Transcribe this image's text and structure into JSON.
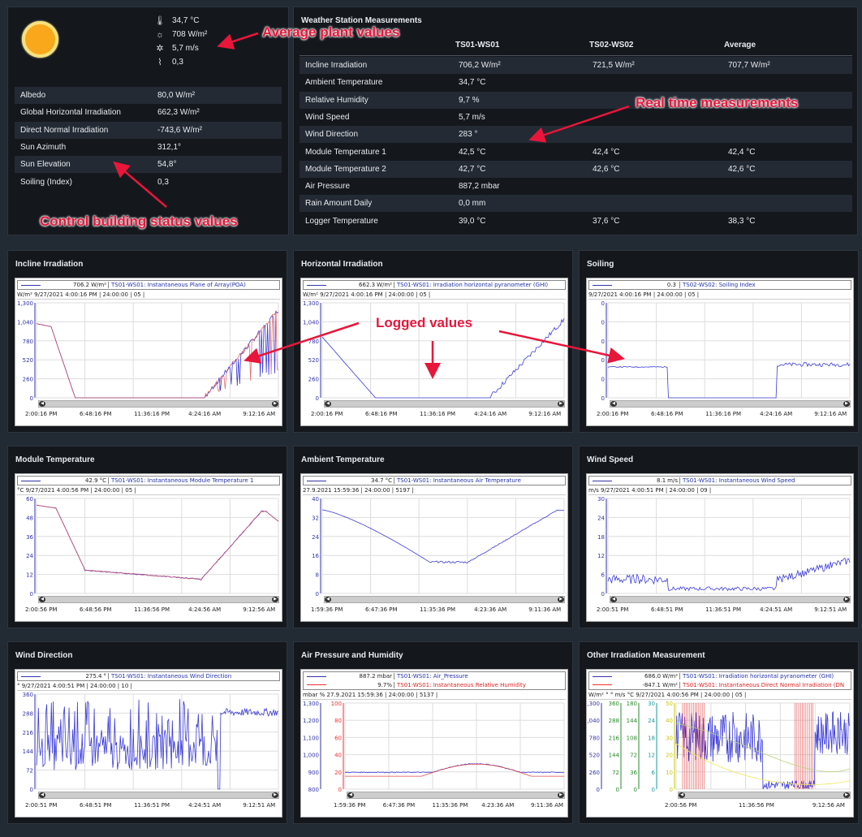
{
  "plant": {
    "avg": [
      {
        "icon": "thermometer-icon",
        "glyph": "🌡",
        "value": "34,7 °C"
      },
      {
        "icon": "sun-outline-icon",
        "glyph": "☼",
        "value": "708 W/m²"
      },
      {
        "icon": "wind-icon",
        "glyph": "✲",
        "value": "5,7 m/s"
      },
      {
        "icon": "soiling-icon",
        "glyph": "⌇",
        "value": "0,3"
      }
    ],
    "status": [
      {
        "label": "Albedo",
        "value": "80,0 W/m²"
      },
      {
        "label": "Global Horizontal Irradiation",
        "value": "662,3 W/m²"
      },
      {
        "label": "Direct Normal Irradiation",
        "value": "-743,6 W/m²"
      },
      {
        "label": "Sun Azimuth",
        "value": "312,1°"
      },
      {
        "label": "Sun Elevation",
        "value": "54,8°"
      },
      {
        "label": "Soiling (Index)",
        "value": "0,3"
      }
    ]
  },
  "weather": {
    "title": "Weather Station Measurements",
    "cols": [
      "TS01-WS01",
      "TS02-WS02",
      "Average"
    ],
    "rows": [
      {
        "label": "Incline Irradiation",
        "v1": "706,2 W/m²",
        "v2": "721,5 W/m²",
        "v3": "707,7 W/m²"
      },
      {
        "label": "Ambient Temperature",
        "v1": "34,7 °C",
        "v2": "",
        "v3": ""
      },
      {
        "label": "Relative Humidity",
        "v1": "9,7 %",
        "v2": "",
        "v3": ""
      },
      {
        "label": "Wind Speed",
        "v1": "5,7 m/s",
        "v2": "",
        "v3": ""
      },
      {
        "label": "Wind Direction",
        "v1": "283 °",
        "v2": "",
        "v3": ""
      },
      {
        "label": "Module Temperature 1",
        "v1": "42,5 °C",
        "v2": "42,4 °C",
        "v3": "42,4 °C"
      },
      {
        "label": "Module Temperature 2",
        "v1": "42,7 °C",
        "v2": "42,6 °C",
        "v3": "42,6 °C"
      },
      {
        "label": "Air Pressure",
        "v1": "887,2 mbar",
        "v2": "",
        "v3": ""
      },
      {
        "label": "Rain Amount Daily",
        "v1": "0,0 mm",
        "v2": "",
        "v3": ""
      },
      {
        "label": "Logger Temperature",
        "v1": "39,0 °C",
        "v2": "37,6 °C",
        "v3": "38,3 °C"
      }
    ]
  },
  "annotations": {
    "avg": "Average plant values",
    "realtime": "Real time measurements",
    "control": "Control building status values",
    "logged": "Logged values"
  },
  "charts": [
    {
      "title": "Incline Irradiation",
      "legend_value": "706.2",
      "legend_unit": "W/m²",
      "legend_name": "TS01-WS01: Instantaneous Plane of Array(POA)",
      "header": "W/m²  9/27/2021 4:00:16 PM | 24:00:00 | 05 |",
      "yticks": [
        "1,300",
        "1,040",
        "780",
        "520",
        "260",
        "0"
      ],
      "xticks": [
        "2:00:16 PM",
        "6:48:16 PM",
        "11:36:16 PM",
        "4:24:16 AM",
        "9:12:16 AM"
      ],
      "kind": "irr"
    },
    {
      "title": "Horizontal Irradiation",
      "legend_value": "662.3",
      "legend_unit": "W/m²",
      "legend_name": "TS01-WS01: Irradiation horizontal pyranometer (GHI)",
      "header": "W/m²  9/27/2021 4:00:16 PM | 24:00:00 | 05 |",
      "yticks": [
        "1,300",
        "1,040",
        "780",
        "520",
        "260",
        "0"
      ],
      "xticks": [
        "2:00:16 PM",
        "6:48:16 PM",
        "11:36:16 PM",
        "4:24:16 AM",
        "9:12:16 AM"
      ],
      "kind": "ghi"
    },
    {
      "title": "Soiling",
      "legend_value": "0.3",
      "legend_unit": "",
      "legend_name": "TS02-WS02: Soiling Index",
      "header": "9/27/2021 4:00:16 PM | 24:00:00 | 05 |",
      "yticks": [
        "0",
        "0",
        "0",
        "0",
        "0",
        "0"
      ],
      "xticks": [
        "2:00:16 PM",
        "6:48:16 PM",
        "11:36:16 PM",
        "4:24:16 AM",
        "9:12:16 AM"
      ],
      "kind": "soil"
    },
    {
      "title": "Module Temperature",
      "legend_value": "42.9",
      "legend_unit": "°C",
      "legend_name": "TS01-WS01: Instantaneous Module Temperature 1",
      "header": "°C  9/27/2021 4:00:56 PM | 24:00:00 | 05 |",
      "yticks": [
        "60",
        "48",
        "36",
        "24",
        "12",
        "0"
      ],
      "xticks": [
        "2:00:56 PM",
        "6:48:56 PM",
        "11:36:56 PM",
        "4:24:56 AM",
        "9:12:56 AM"
      ],
      "kind": "modt"
    },
    {
      "title": "Ambient Temperature",
      "legend_value": "34.7",
      "legend_unit": "°C",
      "legend_name": "TS01-WS01: Instantaneous Air Temperature",
      "header": "27.9.2021 15:59:36 | 24:00:00 | 5197 |",
      "yticks": [
        "40",
        "32",
        "24",
        "16",
        "8",
        "0"
      ],
      "xticks": [
        "1:59:36 PM",
        "6:47:36 PM",
        "11:35:36 PM",
        "4:23:36 AM",
        "9:11:36 AM"
      ],
      "kind": "amb"
    },
    {
      "title": "Wind Speed",
      "legend_value": "8.1",
      "legend_unit": "m/s",
      "legend_name": "TS01-WS01: Instantaneous Wind Speed",
      "header": "m/s  9/27/2021 4:00:51 PM | 24:00:00 | 09 |",
      "yticks": [
        "30",
        "24",
        "18",
        "12",
        "6",
        "0"
      ],
      "xticks": [
        "2:00:51 PM",
        "6:48:51 PM",
        "11:36:51 PM",
        "4:24:51 AM",
        "9:12:51 AM"
      ],
      "kind": "wind"
    },
    {
      "title": "Wind Direction",
      "legend_value": "275.4",
      "legend_unit": "°",
      "legend_name": "TS01-WS01: Instantaneous Wind Direction",
      "header": "°  9/27/2021 4:00:51 PM | 24:00:00 | 10 |",
      "yticks": [
        "360",
        "288",
        "216",
        "144",
        "72",
        "0"
      ],
      "xticks": [
        "2:00:51 PM",
        "6:48:51 PM",
        "11:36:51 PM",
        "4:24:51 AM",
        "9:12:51 AM"
      ],
      "kind": "wdir"
    },
    {
      "title": "Air Pressure and Humidity",
      "legend_value": "887.2",
      "legend_unit": "mbar",
      "legend_name": "TS01-WS01: Air_Pressure",
      "legend_value2": "9.7%",
      "legend_name2": "TS01-WS01: Instantaneous Relative Humidity",
      "header": "mbar   %   27.9.2021 15:59:36 | 24:00:00 | 5137 |",
      "yticks": [
        "1,300",
        "1,200",
        "1,100",
        "1,000",
        "900",
        "800"
      ],
      "yticks2": [
        "100",
        "80",
        "60",
        "40",
        "20",
        "0"
      ],
      "xticks": [
        "1:59:36 PM",
        "6:47:36 PM",
        "11:35:36 PM",
        "4:23:36 AM",
        "9:11:36 AM"
      ],
      "kind": "press"
    },
    {
      "title": "Other Irradiation Measurement",
      "legend_value": "686.0",
      "legend_unit": "W/m²",
      "legend_name": "TS01-WS01: Irradiation horizontal pyranometer (GHI)",
      "legend_value2": "-847.1 W/m²",
      "legend_name2": "TS01-WS01: Instantaneous Direct Normal Irradiation (DN",
      "header": "W/m²  °  °  m/s °C  9/27/2021 4:00:56 PM | 24:00:00 | 05 |",
      "yticks": [
        "1,300",
        "1,040",
        "780",
        "520",
        "260",
        "0"
      ],
      "yticks2": [
        "360",
        "288",
        "216",
        "144",
        "72",
        "0"
      ],
      "yticks3": [
        "180",
        "144",
        "108",
        "72",
        "36",
        "0"
      ],
      "yticks4": [
        "30",
        "24",
        "18",
        "12",
        "6",
        "0"
      ],
      "yticks5": [
        "50",
        "40",
        "30",
        "20",
        "10",
        "0"
      ],
      "xticks": [
        "2:00:56 PM",
        "11:36:56 PM",
        "9:12:56 AM"
      ],
      "kind": "other"
    }
  ],
  "colors": {
    "panel": "#14181d",
    "alt_row": "#232a33",
    "accent": "#e8163a",
    "line": "#3b3bd9"
  }
}
